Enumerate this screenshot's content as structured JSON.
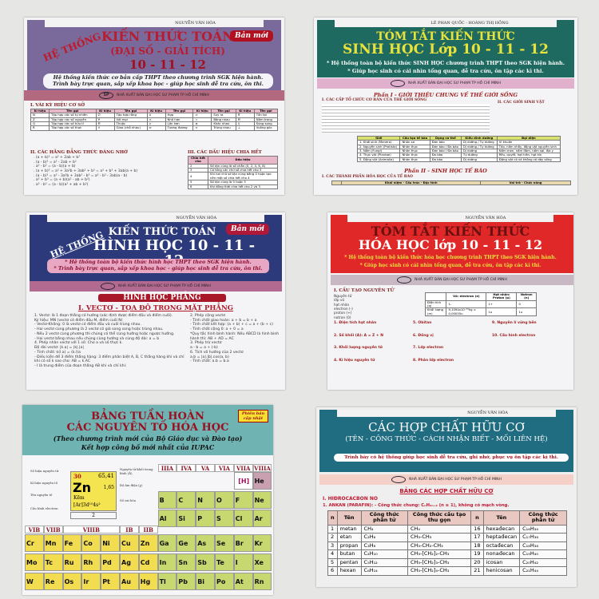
{
  "posters": {
    "algebra": {
      "author": "NGUYỄN VĂN HÒA",
      "he_thong": "HỆ THỐNG",
      "title": "KIẾN THỨC TOÁN",
      "subtitle": "(ĐẠI SỐ - GIẢI TÍCH)",
      "grades": "10 - 11 - 12",
      "badge": "Bản mới",
      "desc1": "Hệ thống kiến thức cơ bản cấp THPT theo chương trình SGK hiện hành.",
      "desc2": "Trình bày trực quan, sắp xếp khoa học - giúp học sinh dễ tra cứu, ôn thi.",
      "publisher": "NHÀ XUẤT BẢN ĐẠI HỌC SƯ PHẠM TP HỒ CHÍ MINH",
      "logo": "SP",
      "sec1": "I. VÀI KÝ HIỆU CƠ SỞ",
      "table_head": [
        "Kí hiệu",
        "Tên gọi",
        "Kí hiệu",
        "Tên gọi",
        "Kí hiệu",
        "Tên gọi",
        "Kí hiệu",
        "Tên gọi",
        "Kí hiệu",
        "Tên gọi"
      ],
      "table_rows": [
        [
          "N",
          "Tập hợp các số tự nhiên",
          "∅",
          "Tập hợp rỗng",
          "∪",
          "Hợp",
          "⇒",
          "Suy ra",
          "∃",
          "Tồn tại"
        ],
        [
          "Z",
          "Tập hợp các số nguyên",
          "∀",
          "Với mọi",
          "<",
          "Nhỏ hơn",
          "=",
          "Bằng nhau",
          "∈",
          "Nằm trong"
        ],
        [
          "Q",
          "Tập hợp các số hữu tỉ",
          "∈",
          "Thuộc",
          ">",
          "Lớn hơn",
          "≠",
          "Khác nhau",
          "//",
          "Song song"
        ],
        [
          "R",
          "Tập hợp các số thực",
          "∩",
          "Giao (chỗ nhau)",
          "⇔",
          "Tương đương",
          "≈",
          "Trùng nhau",
          "⊥",
          "Vuông góc"
        ]
      ],
      "sec2": "II. CÁC HẰNG ĐẲNG THỨC ĐÁNG NHỚ",
      "identities": [
        ". (a + b)² = a² + 2ab + b²",
        ". (a - b)² = a² - 2ab + b²",
        ". a² - b² = (a - b)(a + b)",
        ". (a + b)³ = a³ + 3a²b + 3ab² + b³ = a³ + b³ + 3ab(a + b)",
        ". (a - b)³ = a³ - 3a²b + 3ab² - b³ = a³ - b³ - 3ab(a - b)",
        ". a³ + b³ = (a + b)(a² - ab + b²)",
        ". a³ - b³ = (a - b)(a² + ab + b²)"
      ],
      "sec3": "III. CÁC DẤU HIỆU CHIA HẾT",
      "div_head": [
        "Chia hết cho",
        "Dấu hiệu"
      ],
      "div_rows": [
        [
          "2",
          "Số tận cùng là số chẵn (0, 2, 4, 6, 8)"
        ],
        [
          "3",
          "Có tổng các chữ số chia hết cho 3"
        ],
        [
          "4",
          "Khi hai chữ số tận cùng bằng 0 hoặc tạo nên một số chia hết cho 4"
        ],
        [
          "5",
          "Số tận cùng là 0 hoặc 5"
        ],
        [
          "6",
          "Khi đồng thời chia hết cho 2 và 3"
        ]
      ]
    },
    "biology": {
      "author": "LÊ PHAN QUỐC - HOÀNG THỊ HỒNG",
      "title1": "TÓM TẮT KIẾN THỨC",
      "title2": "SINH HỌC Lớp 10 - 11 - 12",
      "desc1": "* Hệ thống toàn bộ kiến thức SINH HỌC chương trình THPT theo SGK hiện hành.",
      "desc2": "* Giúp học sinh có cái nhìn tổng quan, dễ tra cứu, ôn tập các kì thi.",
      "publisher": "NHÀ XUẤT BẢN ĐẠI HỌC SƯ PHẠM TP HỒ CHÍ MINH",
      "part1": "Phần I - GIỚI THIỆU CHUNG VỀ THẾ GIỚI SỐNG",
      "sec1": "I. CÁC CẤP TỔ CHỨC CƠ BẢN CỦA THẾ GIỚI SỐNG",
      "sec1b": "II. CÁC GIỚI SINH VẬT",
      "table_head": [
        "Giới",
        "Cấu tạo tế bào",
        "Dạng cơ thể",
        "Kiểu dinh dưỡng",
        "Đại diện"
      ],
      "table_rows": [
        [
          "1. Khởi sinh (Monera)",
          "Nhân sơ",
          "Đơn bào",
          "Dị dưỡng / Tự dưỡng",
          "Vi khuẩn"
        ],
        [
          "2. Nguyên sinh (Protista)",
          "Nhân thực",
          "Đơn bào / Đa bào",
          "Dị dưỡng / Tự dưỡng",
          "Tảo, nấm nhầy, động vật nguyên sinh"
        ],
        [
          "3. Nấm (Fungi)",
          "Nhân thực",
          "Đơn bào / Đa bào",
          "Dị dưỡng",
          "Nấm men, nấm đảm, nấm sợi, địa y"
        ],
        [
          "4. Thực vật (Plantae)",
          "Nhân thực",
          "Đa bào",
          "Tự dưỡng",
          "Rêu, quyết, hạt trần, hạt kín"
        ],
        [
          "5. Động vật (Animalia)",
          "Nhân thực",
          "Đa bào",
          "Dị dưỡng",
          "Động vật có và không có dây sống"
        ]
      ],
      "part2": "Phần II - SINH HỌC TẾ BÀO",
      "sec2": "I. CÁC THÀNH PHẦN HÓA HỌC CỦA TẾ BÀO",
      "t2_head": [
        "",
        "Khái niệm - Cấu trúc - Đặc tính",
        "Vai trò - Chức năng"
      ]
    },
    "geometry": {
      "author": "NGUYỄN VĂN HÒA",
      "he_thong": "HỆ THỐNG",
      "title": "KIẾN THỨC TOÁN",
      "title2": "HÌNH HỌC 10 - 11 - 12",
      "badge": "Bản mới",
      "desc1": "* Hệ thống toàn bộ kiến thức hình học THPT theo SGK hiện hành.",
      "desc2": "* Trình bày trực quan, sắp xếp khoa học - giúp học sinh dễ tra cứu, ôn thi.",
      "publisher": "NHÀ XUẤT BẢN ĐẠI HỌC SƯ PHẠM TP HỒ CHÍ MINH",
      "section": "HÌNH HỌC PHẲNG",
      "chapter": "I. VECTƠ - TỌA ĐỘ TRONG MẶT PHẲNG",
      "left": [
        "1. Vectơ: là 1 đoạn thẳng có hướng (xác định được điểm đầu và điểm cuối).",
        "Ký hiệu: MN (vectơ có điểm đầu M, điểm cuối N)",
        "- Vectơ-Không: 0 là vectơ có điểm đầu và cuối trùng nhau.",
        "- Hai vectơ cùng phương là 2 vectơ có giá song song hoặc trùng nhau.",
        "- Nếu 2 vectơ cùng phương thì chúng có thể cùng hướng hoặc ngược hướng.",
        "- Hai vectơ bằng nhau nếu chúng cùng hướng và cùng độ dài: a = b",
        "4. Phép nhân vectơ với 1 số: Cho a và số thực k.",
        "Độ dài vectơ: |k.a| = |k|.|a|",
        "- Tính chất: k(l.a) = (k.l)a",
        "- Điều kiện để 3 điểm thẳng hàng: 3 điểm phân biệt A, B, C thẳng hàng khi và chỉ khi có số k sao cho: AB = k.AC",
        "- I là trung điểm của đoạn thẳng AB khi và chỉ khi:"
      ],
      "right": [
        "2. Phép cộng vectơ",
        "- Tính chất giao hoán: a + b = b + a",
        "- Tính chất kết hợp: (a + b) + c = a + (b + c)",
        "- Tính chất cộng 0: a + 0 = a",
        "*Quy tắc hình bình hành: Nếu ABCD là hình bình hành thì: AB + AD = AC",
        "3. Phép trừ vectơ",
        "a - b = a + (-b)",
        "6. Tích vô hướng của 2 vectơ",
        "a.b = |a|.|b|.cos(a, b)",
        "- Tính chất: a.b = b.a"
      ]
    },
    "chemistry": {
      "author": "NGUYỄN VĂN HÒA",
      "title1": "TÓM TẮT KIẾN THỨC",
      "title2": "HÓA HỌC lớp 10 - 11 - 12",
      "desc1": "* Hệ thống toàn bộ kiến thức hóa học chương trình THPT theo SGK hiện hành.",
      "desc2": "* Giúp học sinh có cái nhìn tổng quan, dễ tra cứu, ôn tập các kì thi.",
      "publisher": "NHÀ XUẤT BẢN ĐẠI HỌC SƯ PHẠM TP HỒ CHÍ MINH",
      "sec1": "I. CẤU TẠO NGUYÊN TỬ",
      "atom": [
        "Nguyên tử",
        "lớp vỏ",
        "hạt nhân",
        "electron (-)",
        "proton (+)",
        "notron (0)"
      ],
      "t_head": [
        "",
        "Vỏ: electron (e)",
        "Hạt nhân: Proton (p)",
        "Notron (n)"
      ],
      "t_rows": [
        [
          "Điện tích (q)",
          "1-",
          "1+",
          "0"
        ],
        [
          "Khối lượng (m)",
          "9,1094x10⁻³¹kg ≈ 0,00055u",
          "1u",
          "1u"
        ]
      ],
      "notes": [
        "1. Điện tích hạt nhân",
        "2. Số khối (A): A = Z + N",
        "3. Khối lượng nguyên tử",
        "4. Kí hiệu nguyên tử",
        "5. Obitan",
        "6. Đồng vị",
        "7. Lớp electron",
        "8. Phân lớp electron",
        "9. Nguyên lí vững bền",
        "10. Cấu hình electron"
      ]
    },
    "periodic": {
      "title1": "BẢNG TUẦN HOÀN",
      "title2": "CÁC NGUYÊN TỐ HÓA HỌC",
      "sub1": "(Theo chương trình mới của Bộ Giáo dục và Đào tạo)",
      "sub2": "Kết hợp công bố mới nhất của IUPAC",
      "badge": "Phiên bản cập nhật",
      "legend": {
        "number": "30",
        "mass": "65,41",
        "symbol": "Zn",
        "en": "1,65",
        "name": "Kẽm",
        "config": "[Ar]3d¹⁰4s²",
        "ox": "2",
        "lbl_number": "Số hiệu nguyên tử",
        "lbl_symbol": "Kí hiệu nguyên tố",
        "lbl_name": "Tên nguyên tố",
        "lbl_config": "Cấu hình electron",
        "lbl_mass": "Nguyên tử khối trung bình (Å)",
        "lbl_en": "Độ âm điện (χ)",
        "lbl_ox": "Số oxi hóa"
      },
      "groups_right": [
        "IIIA",
        "IVA",
        "VA",
        "VIA",
        "VIIA",
        "VIIIA"
      ],
      "groups_left": [
        "VIB",
        "VIIB",
        "VIIIB",
        "IB",
        "IIB"
      ],
      "hydrogen": "[H]",
      "helium": "He",
      "row2": [
        "B",
        "C",
        "N",
        "O",
        "F",
        "Ne"
      ],
      "row3": [
        "Al",
        "Si",
        "P",
        "S",
        "Cl",
        "Ar"
      ],
      "row4": [
        "Cr",
        "Mn",
        "Fe",
        "Co",
        "Ni",
        "Cu",
        "Zn",
        "Ga",
        "Ge",
        "As",
        "Se",
        "Br",
        "Kr"
      ],
      "row5": [
        "Mo",
        "Tc",
        "Ru",
        "Rh",
        "Pd",
        "Ag",
        "Cd",
        "In",
        "Sn",
        "Sb",
        "Te",
        "I",
        "Xe"
      ],
      "row6": [
        "W",
        "Re",
        "Os",
        "Ir",
        "Pt",
        "Au",
        "Hg",
        "Tl",
        "Pb",
        "Bi",
        "Po",
        "At",
        "Rn"
      ]
    },
    "organic": {
      "author": "NGUYỄN VĂN HÒA",
      "title1": "CÁC HỢP CHẤT HỮU CƠ",
      "title2": "(TÊN - CÔNG THỨC - CÁCH NHẬN BIẾT - MỐI LIÊN HỆ)",
      "desc": "Trình bày có hệ thống giúp học sinh dễ tra cứu, ghi nhớ, phục vụ ôn tập các kì thi.",
      "publisher": "NHÀ XUẤT BẢN ĐẠI HỌC SƯ PHẠM TP HỒ CHÍ MINH",
      "table_title": "BẢNG CÁC HỢP CHẤT HỮU CƠ",
      "sec1": "I. HIĐROCACBON NO",
      "sec1a": "1. ANKAN (PARAFIN): - Công thức chung: CₙH₂ₙ₊₂ (n ≥ 1), không có mạch vòng.",
      "head": [
        "n",
        "Tên",
        "Công thức phân tử",
        "Công thức cấu tạo thu gọn",
        "n",
        "Tên",
        "Công thức phân tử"
      ],
      "rows": [
        [
          "1",
          "metan",
          "CH₄",
          "CH₄",
          "16",
          "hexađecan",
          "C₁₆H₃₄"
        ],
        [
          "2",
          "etan",
          "C₂H₆",
          "CH₃-CH₃",
          "17",
          "heptađecan",
          "C₁₇H₃₆"
        ],
        [
          "3",
          "propan",
          "C₃H₈",
          "CH₃-CH₂-CH₃",
          "18",
          "octađecan",
          "C₁₈H₃₈"
        ],
        [
          "4",
          "butan",
          "C₄H₁₀",
          "CH₃-[CH₂]₂-CH₃",
          "19",
          "nonađecan",
          "C₁₉H₄₀"
        ],
        [
          "5",
          "pentan",
          "C₅H₁₂",
          "CH₃-[CH₂]₃-CH₃",
          "20",
          "icosan",
          "C₂₀H₄₂"
        ],
        [
          "6",
          "hexan",
          "C₆H₁₄",
          "CH₃-[CH₂]₄-CH₃",
          "21",
          "henicosan",
          "C₂₁H₄₄"
        ]
      ]
    }
  },
  "colors": {
    "algebra_header": "#7a6a9c",
    "biology_header": "#1e6a60",
    "geometry_header": "#2c3a7c",
    "chemistry_header": "#e02828",
    "periodic_header": "#6fb3b3",
    "organic_header": "#206c80"
  }
}
